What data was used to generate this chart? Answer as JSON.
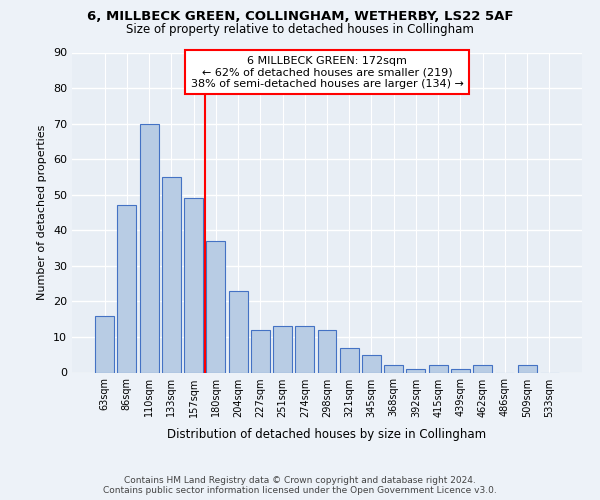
{
  "title1": "6, MILLBECK GREEN, COLLINGHAM, WETHERBY, LS22 5AF",
  "title2": "Size of property relative to detached houses in Collingham",
  "xlabel": "Distribution of detached houses by size in Collingham",
  "ylabel": "Number of detached properties",
  "categories": [
    "63sqm",
    "86sqm",
    "110sqm",
    "133sqm",
    "157sqm",
    "180sqm",
    "204sqm",
    "227sqm",
    "251sqm",
    "274sqm",
    "298sqm",
    "321sqm",
    "345sqm",
    "368sqm",
    "392sqm",
    "415sqm",
    "439sqm",
    "462sqm",
    "486sqm",
    "509sqm",
    "533sqm"
  ],
  "values": [
    16,
    47,
    70,
    55,
    49,
    37,
    23,
    12,
    13,
    13,
    12,
    7,
    5,
    2,
    1,
    2,
    1,
    2,
    0,
    2,
    0
  ],
  "bar_color": "#b8cce4",
  "bar_edge_color": "#4472c4",
  "ylim": [
    0,
    90
  ],
  "yticks": [
    0,
    10,
    20,
    30,
    40,
    50,
    60,
    70,
    80,
    90
  ],
  "red_line_x": 4.5,
  "annotation_text1": "6 MILLBECK GREEN: 172sqm",
  "annotation_text2": "← 62% of detached houses are smaller (219)",
  "annotation_text3": "38% of semi-detached houses are larger (134) →",
  "footer1": "Contains HM Land Registry data © Crown copyright and database right 2024.",
  "footer2": "Contains public sector information licensed under the Open Government Licence v3.0.",
  "fig_bg": "#edf2f8",
  "ax_bg": "#e8eef5"
}
